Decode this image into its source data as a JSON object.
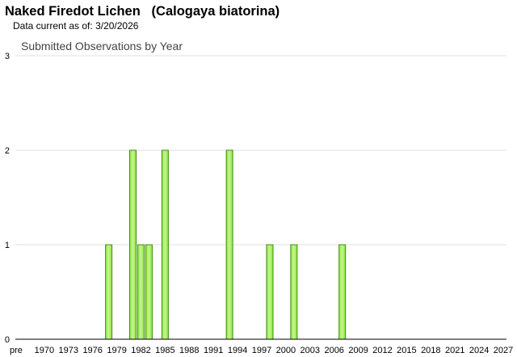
{
  "page": {
    "species_common": "Naked Firedot Lichen",
    "species_scientific": "(Calogaya biatorina)",
    "as_of_label": "Data current as of:",
    "as_of_date": "3/20/2026"
  },
  "colors": {
    "bar_fill": "#8ee63c",
    "bar_highlight": "#c6f58f",
    "bar_stroke": "#3c8f10",
    "grid": "#e2e2e2",
    "axis": "#000000"
  },
  "chart_data": {
    "type": "bar",
    "title": "Submitted Observations by Year",
    "xlabel": "",
    "ylabel": "",
    "ylim": [
      0,
      3
    ],
    "yticks": [
      0,
      1,
      2,
      3
    ],
    "grid": true,
    "legend": "none",
    "x_range": [
      1966.4,
      2027.4
    ],
    "xticks": [
      {
        "year": 1966.5,
        "label": "pre"
      },
      {
        "year": 1970,
        "label": "1970"
      },
      {
        "year": 1973,
        "label": "1973"
      },
      {
        "year": 1976,
        "label": "1976"
      },
      {
        "year": 1979,
        "label": "1979"
      },
      {
        "year": 1982,
        "label": "1982"
      },
      {
        "year": 1985,
        "label": "1985"
      },
      {
        "year": 1988,
        "label": "1988"
      },
      {
        "year": 1991,
        "label": "1991"
      },
      {
        "year": 1994,
        "label": "1994"
      },
      {
        "year": 1997,
        "label": "1997"
      },
      {
        "year": 2000,
        "label": "2000"
      },
      {
        "year": 2003,
        "label": "2003"
      },
      {
        "year": 2006,
        "label": "2006"
      },
      {
        "year": 2009,
        "label": "2009"
      },
      {
        "year": 2012,
        "label": "2012"
      },
      {
        "year": 2015,
        "label": "2015"
      },
      {
        "year": 2018,
        "label": "2018"
      },
      {
        "year": 2021,
        "label": "2021"
      },
      {
        "year": 2024,
        "label": "2024"
      },
      {
        "year": 2027,
        "label": "2027"
      }
    ],
    "x": [
      1978,
      1981,
      1982,
      1983,
      1985,
      1993,
      1998,
      2001,
      2007
    ],
    "values": [
      1,
      2,
      1,
      1,
      2,
      2,
      1,
      1,
      1
    ]
  }
}
